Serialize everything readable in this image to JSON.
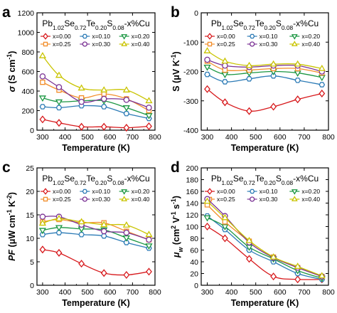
{
  "formula": "Pb1.02Se0.72Te0.20S0.08-x%Cu",
  "chart_data": [
    {
      "panel": "a",
      "type": "line",
      "title": "Pb1.02Se0.72Te0.20S0.08-x%Cu",
      "xlabel": "Temperature (K)",
      "ylabel": "σ (S cm⁻¹)",
      "xlim": [
        275,
        800
      ],
      "ylim": [
        0,
        1200
      ],
      "xticks": [
        300,
        400,
        500,
        600,
        700,
        800
      ],
      "yticks": [
        0,
        200,
        400,
        600,
        800,
        1000,
        1200
      ],
      "legend_position": "top",
      "x": [
        300,
        373,
        473,
        573,
        673,
        773
      ],
      "series": [
        {
          "name": "x=0.00",
          "color": "#d7191c",
          "marker": "diamond",
          "values": [
            110,
            75,
            35,
            35,
            25,
            40
          ]
        },
        {
          "name": "x=0.10",
          "color": "#2c7bb6",
          "marker": "hexagon",
          "values": [
            240,
            230,
            250,
            240,
            170,
            120
          ]
        },
        {
          "name": "x=0.20",
          "color": "#1a9641",
          "marker": "triangle-down",
          "values": [
            330,
            290,
            300,
            300,
            230,
            150
          ]
        },
        {
          "name": "x=0.25",
          "color": "#f28e2b",
          "marker": "square",
          "values": [
            490,
            410,
            330,
            370,
            320,
            200
          ]
        },
        {
          "name": "x=0.30",
          "color": "#7b3294",
          "marker": "circle",
          "values": [
            550,
            440,
            290,
            320,
            310,
            230
          ]
        },
        {
          "name": "x=0.40",
          "color": "#c9c400",
          "marker": "triangle-up",
          "values": [
            760,
            560,
            430,
            410,
            410,
            300
          ]
        }
      ]
    },
    {
      "panel": "b",
      "type": "line",
      "title": "Pb1.02Se0.72Te0.20S0.08-x%Cu",
      "xlabel": "Temperature (K)",
      "ylabel": "S (μV K⁻¹)",
      "xlim": [
        275,
        800
      ],
      "ylim": [
        -400,
        0
      ],
      "xticks": [
        300,
        400,
        500,
        600,
        700,
        800
      ],
      "yticks": [
        -400,
        -300,
        -200,
        -100,
        0
      ],
      "legend_position": "top",
      "x": [
        300,
        373,
        473,
        573,
        673,
        773
      ],
      "series": [
        {
          "name": "x=0.00",
          "color": "#d7191c",
          "marker": "diamond",
          "values": [
            -260,
            -305,
            -335,
            -320,
            -295,
            -275
          ]
        },
        {
          "name": "x=0.10",
          "color": "#2c7bb6",
          "marker": "hexagon",
          "values": [
            -210,
            -235,
            -225,
            -215,
            -230,
            -245
          ]
        },
        {
          "name": "x=0.20",
          "color": "#1a9641",
          "marker": "triangle-down",
          "values": [
            -185,
            -210,
            -205,
            -200,
            -205,
            -220
          ]
        },
        {
          "name": "x=0.25",
          "color": "#f28e2b",
          "marker": "square",
          "values": [
            -165,
            -195,
            -195,
            -190,
            -190,
            -205
          ]
        },
        {
          "name": "x=0.30",
          "color": "#7b3294",
          "marker": "circle",
          "values": [
            -160,
            -180,
            -185,
            -180,
            -180,
            -200
          ]
        },
        {
          "name": "x=0.40",
          "color": "#c9c400",
          "marker": "triangle-up",
          "values": [
            -130,
            -165,
            -180,
            -175,
            -175,
            -190
          ]
        }
      ]
    },
    {
      "panel": "c",
      "type": "line",
      "title": "Pb1.02Se0.72Te0.20S0.08-x%Cu",
      "xlabel": "Temperature (K)",
      "ylabel": "PF (μW cm⁻¹ K⁻²)",
      "xlim": [
        275,
        800
      ],
      "ylim": [
        0,
        25
      ],
      "xticks": [
        300,
        400,
        500,
        600,
        700,
        800
      ],
      "yticks": [
        0,
        5,
        10,
        15,
        20,
        25
      ],
      "legend_position": "top",
      "x": [
        300,
        373,
        473,
        573,
        673,
        773
      ],
      "series": [
        {
          "name": "x=0.00",
          "color": "#d7191c",
          "marker": "diamond",
          "values": [
            7.6,
            6.9,
            4.6,
            2.6,
            2.2,
            2.9
          ]
        },
        {
          "name": "x=0.10",
          "color": "#2c7bb6",
          "marker": "hexagon",
          "values": [
            10.8,
            11.2,
            10.8,
            10.5,
            9.1,
            7.9
          ]
        },
        {
          "name": "x=0.20",
          "color": "#1a9641",
          "marker": "triangle-down",
          "values": [
            11.7,
            12.3,
            12.0,
            11.8,
            10.1,
            8.4
          ]
        },
        {
          "name": "x=0.25",
          "color": "#f28e2b",
          "marker": "square",
          "values": [
            13.5,
            14.0,
            13.3,
            13.3,
            11.5,
            9.7
          ]
        },
        {
          "name": "x=0.30",
          "color": "#7b3294",
          "marker": "circle",
          "values": [
            14.6,
            14.6,
            12.9,
            11.5,
            11.2,
            9.7
          ]
        },
        {
          "name": "x=0.40",
          "color": "#c9c400",
          "marker": "triangle-up",
          "values": [
            13.2,
            14.2,
            13.5,
            12.9,
            12.8,
            10.8
          ]
        }
      ]
    },
    {
      "panel": "d",
      "type": "line",
      "title": "Pb1.02Se0.72Te0.20S0.08-x%Cu",
      "xlabel": "Temperature (K)",
      "ylabel": "μw (cm² V⁻¹ s⁻¹)",
      "xlim": [
        275,
        800
      ],
      "ylim": [
        0,
        200
      ],
      "xticks": [
        300,
        400,
        500,
        600,
        700,
        800
      ],
      "yticks": [
        0,
        20,
        40,
        60,
        80,
        100,
        120,
        140,
        160,
        180,
        200
      ],
      "legend_position": "top",
      "x": [
        300,
        373,
        473,
        573,
        673,
        773
      ],
      "series": [
        {
          "name": "x=0.00",
          "color": "#d7191c",
          "marker": "diamond",
          "values": [
            100,
            80,
            45,
            15,
            10,
            10
          ]
        },
        {
          "name": "x=0.10",
          "color": "#2c7bb6",
          "marker": "hexagon",
          "values": [
            118,
            95,
            60,
            40,
            20,
            10
          ]
        },
        {
          "name": "x=0.20",
          "color": "#1a9641",
          "marker": "triangle-down",
          "values": [
            115,
            100,
            65,
            45,
            25,
            12
          ]
        },
        {
          "name": "x=0.25",
          "color": "#f28e2b",
          "marker": "square",
          "values": [
            137,
            108,
            75,
            48,
            30,
            15
          ]
        },
        {
          "name": "x=0.30",
          "color": "#7b3294",
          "marker": "circle",
          "values": [
            147,
            118,
            73,
            47,
            30,
            15
          ]
        },
        {
          "name": "x=0.40",
          "color": "#c9c400",
          "marker": "triangle-up",
          "values": [
            143,
            115,
            76,
            48,
            32,
            16
          ]
        }
      ]
    }
  ]
}
